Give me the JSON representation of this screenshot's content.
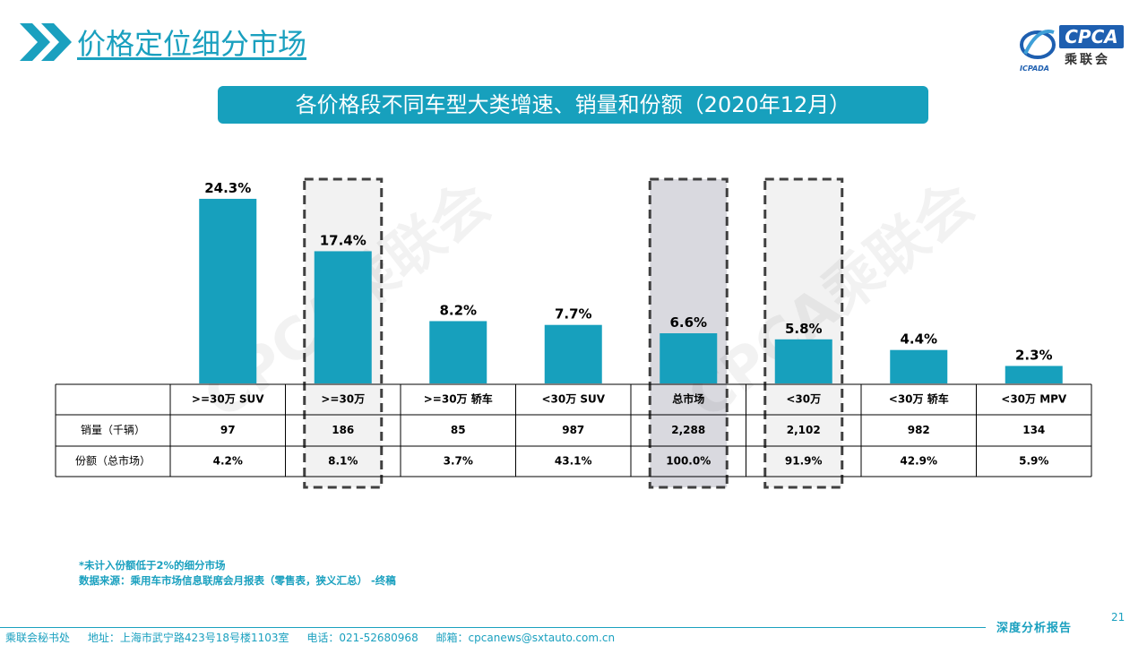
{
  "section_title": "价格定位细分市场",
  "logo": {
    "brand": "CPCA",
    "cn": "乘联会",
    "emblem_text": "ICPADA"
  },
  "banner_title": "各价格段不同车型大类增速、销量和份额（2020年12月）",
  "watermark": "CPCA乘联会",
  "colors": {
    "accent": "#17a0bd",
    "bar": "#17a0bd",
    "highlight_gray": "#d9d9df",
    "highlight_light": "#f2f2f2"
  },
  "chart_data": {
    "type": "bar",
    "categories": [
      ">=30万 SUV",
      ">=30万",
      ">=30万 轿车",
      "<30万 SUV",
      "总市场",
      "<30万",
      "<30万 轿车",
      "<30万 MPV"
    ],
    "values": [
      24.3,
      17.4,
      8.2,
      7.7,
      6.6,
      5.8,
      4.4,
      2.3
    ],
    "value_labels": [
      "24.3%",
      "17.4%",
      "8.2%",
      "7.7%",
      "6.6%",
      "5.8%",
      "4.4%",
      "2.3%"
    ],
    "ylim": [
      0,
      25
    ],
    "highlighted": [
      {
        "category": ">=30万",
        "style": "dashed-light"
      },
      {
        "category": "总市场",
        "style": "dashed-gray"
      },
      {
        "category": "<30万",
        "style": "dashed-light"
      }
    ],
    "table": {
      "rows": [
        {
          "label": "销量（千辆）",
          "cells": [
            "97",
            "186",
            "85",
            "987",
            "2,288",
            "2,102",
            "982",
            "134"
          ]
        },
        {
          "label": "份额（总市场）",
          "cells": [
            "4.2%",
            "8.1%",
            "3.7%",
            "43.1%",
            "100.0%",
            "91.9%",
            "42.9%",
            "5.9%"
          ]
        }
      ]
    }
  },
  "notes": {
    "line1": "*未计入份额低于2%的细分市场",
    "line2": "数据来源：乘用车市场信息联席会月报表（零售表，狭义汇总）  -终稿"
  },
  "page_number": "21",
  "footer": {
    "label": "深度分析报告",
    "org": "乘联会秘书处",
    "address": "地址：上海市武宁路423号18号楼1103室",
    "phone": "电话：021-52680968",
    "email": "邮箱：cpcanews@sxtauto.com.cn"
  }
}
